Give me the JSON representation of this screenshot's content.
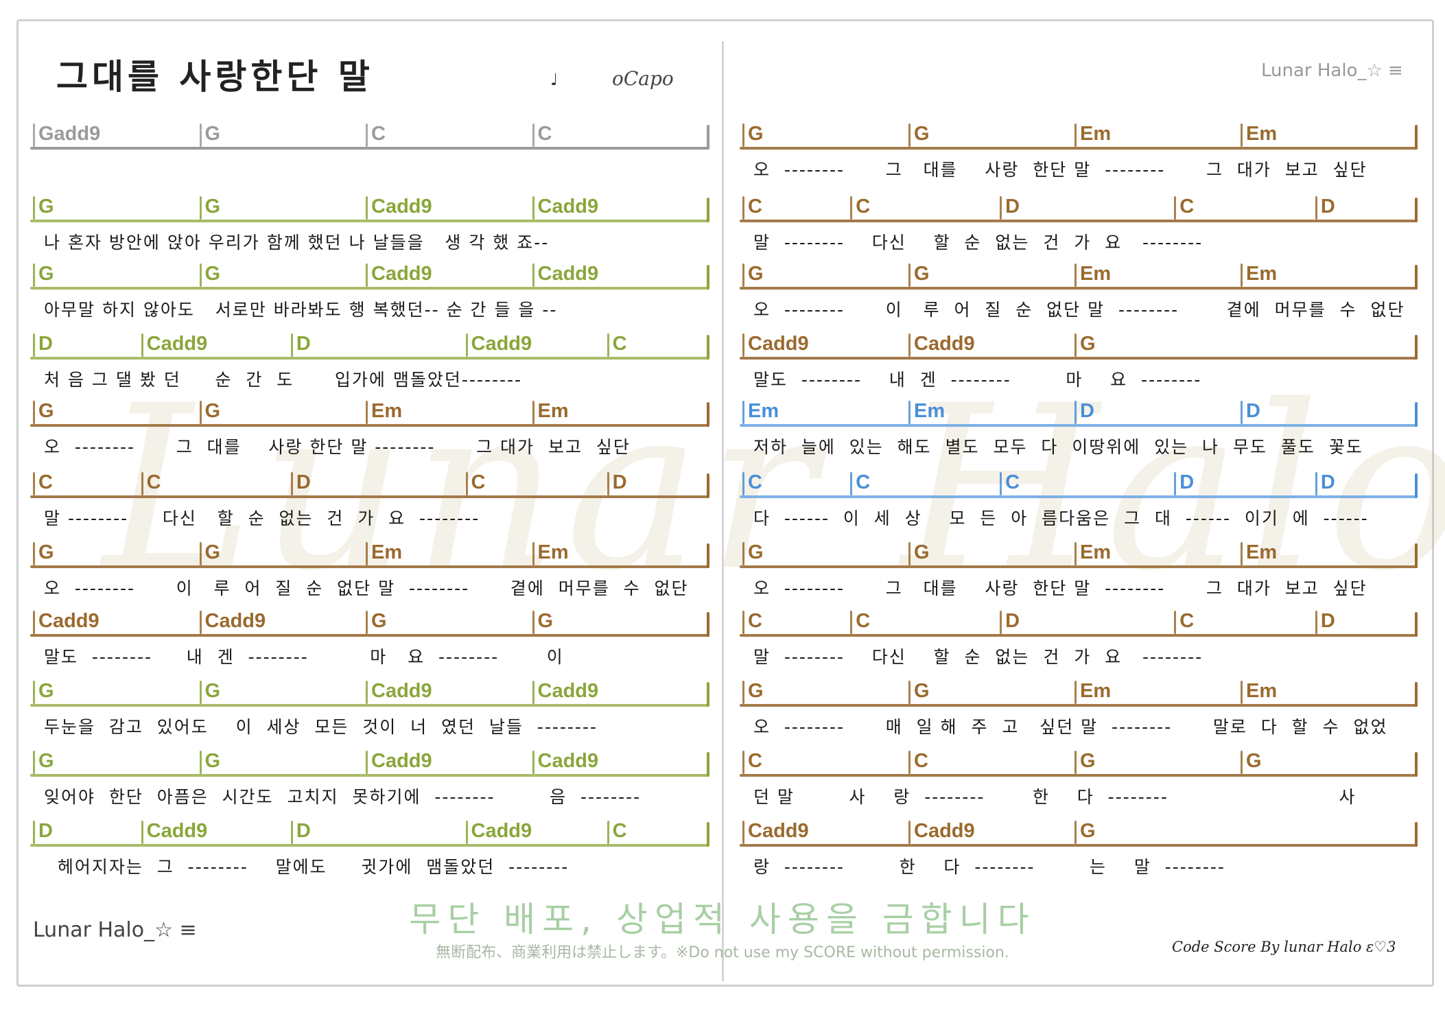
{
  "header": {
    "title": "그대를 사랑한단 말",
    "note_symbol": "♩",
    "capo": "oCapo",
    "brand_top": "Lunar Halo_☆ ≡"
  },
  "footer": {
    "brand": "Lunar Halo_☆ ≡",
    "notice_ko": "무단 배포, 상업적 사용을 금합니다",
    "notice_en": "無断配布、商業利用は禁止します。※Do not use my SCORE without permission.",
    "credit": "Code Score By lunar Halo ε♡3"
  },
  "watermark": "Lunar Halo",
  "colors": {
    "gray": "#9a9a9a",
    "green": "#8aa63a",
    "green_line": "#a9bb6a",
    "brown": "#9a6a2e",
    "brown_line": "#a47a4a",
    "olive": "#8f7d1c",
    "blue": "#4a8fd6",
    "blue_line": "#7db0e6"
  },
  "left_column": [
    {
      "color": "gray",
      "chords": [
        "Gadd9",
        "G",
        "C",
        "C"
      ],
      "lyric": ""
    },
    {
      "color": "green",
      "chords": [
        "G",
        "G",
        "Cadd9",
        "Cadd9"
      ],
      "lyric": "나 혼자 방안에 앉아 우리가 함께 했던 나 날들을   생 각 했 죠--"
    },
    {
      "color": "green",
      "chords": [
        "G",
        "G",
        "Cadd9",
        "Cadd9"
      ],
      "lyric": "아무말 하지 않아도   서로만 바라봐도 행 복했던-- 순 간 들 을 --"
    },
    {
      "color": "green",
      "chords": [
        "D",
        "Cadd9",
        "D",
        "Cadd9",
        "C"
      ],
      "lyric": "처 음 그 댈 봤 던     순  간  도      입가에 맴돌았던--------"
    },
    {
      "color": "brown",
      "chords": [
        "G",
        "G",
        "Em",
        "Em"
      ],
      "lyric": "오  --------      그  대를    사랑 한단 말 --------      그 대가  보고  싶단"
    },
    {
      "color": "brown",
      "chords": [
        "C",
        "C",
        "D",
        "C",
        "D"
      ],
      "lyric": "말 --------     다신   할  순  없는  건  가  요  --------"
    },
    {
      "color": "brown",
      "chords": [
        "G",
        "G",
        "Em",
        "Em"
      ],
      "lyric": "오  --------      이   루  어  질  순  없단 말  --------      곁에  머무를  수  없단"
    },
    {
      "color": "brown",
      "chords": [
        "Cadd9",
        "Cadd9",
        "G",
        "G"
      ],
      "lyric": "말도  --------     내  겐  --------         마   요  --------       이"
    },
    {
      "color": "green",
      "chords": [
        "G",
        "G",
        "Cadd9",
        "Cadd9"
      ],
      "lyric": "두눈을  감고  있어도    이  세상  모든  것이  너  였던  날들  --------"
    },
    {
      "color": "green",
      "chords": [
        "G",
        "G",
        "Cadd9",
        "Cadd9"
      ],
      "lyric": "잊어야  한단  아픔은  시간도  고치지  못하기에  --------        음  --------"
    },
    {
      "color": "green",
      "chords": [
        "D",
        "Cadd9",
        "D",
        "Cadd9",
        "C"
      ],
      "lyric": "  헤어지자는  그  --------    말에도     귓가에  맴돌았던  --------"
    }
  ],
  "right_column": [
    {
      "color": "brown",
      "chords": [
        "G",
        "G",
        "Em",
        "Em"
      ],
      "lyric": "오  --------      그   대를    사랑  한단 말  --------      그  대가  보고  싶단"
    },
    {
      "color": "brown",
      "chords": [
        "C",
        "C",
        "D",
        "C",
        "D"
      ],
      "lyric": "말  --------    다신    할  순  없는  건  가  요   --------"
    },
    {
      "color": "brown",
      "chords": [
        "G",
        "G",
        "Em",
        "Em"
      ],
      "lyric": "오  --------      이   루  어  질  순  없단 말  --------       곁에  머무를  수  없단"
    },
    {
      "color": "brown",
      "chords": [
        "Cadd9",
        "Cadd9",
        "G"
      ],
      "lyric": "말도  --------    내  겐  --------        마    요  --------"
    },
    {
      "color": "blue",
      "chords": [
        "Em",
        "Em",
        "D",
        "D"
      ],
      "lyric": "저하  늘에  있는  해도  별도  모두  다  이땅위에  있는  나  무도  풀도  꽃도"
    },
    {
      "color": "blue",
      "chords": [
        "C",
        "C",
        "C",
        "D",
        "D"
      ],
      "lyric": "다  ------  이  세  상    모  든  아  름다움은  그  대  ------  이기  에  ------"
    },
    {
      "color": "brown",
      "chords": [
        "G",
        "G",
        "Em",
        "Em"
      ],
      "lyric": "오  --------      그   대를    사랑  한단 말  --------      그  대가  보고  싶단"
    },
    {
      "color": "brown",
      "chords": [
        "C",
        "C",
        "D",
        "C",
        "D"
      ],
      "lyric": "말  --------    다신    할  순  없는  건  가  요   --------"
    },
    {
      "color": "brown",
      "chords": [
        "G",
        "G",
        "Em",
        "Em"
      ],
      "lyric": "오  --------      매  일 해  주  고   싶던 말  --------      말로  다  할  수  없었"
    },
    {
      "color": "brown",
      "chords": [
        "C",
        "C",
        "G",
        "G"
      ],
      "lyric": "던 말        사    랑  --------       한    다  --------                         사"
    },
    {
      "color": "brown",
      "chords": [
        "Cadd9",
        "Cadd9",
        "G"
      ],
      "lyric": "랑  --------        한    다  --------        는    말  --------"
    }
  ]
}
